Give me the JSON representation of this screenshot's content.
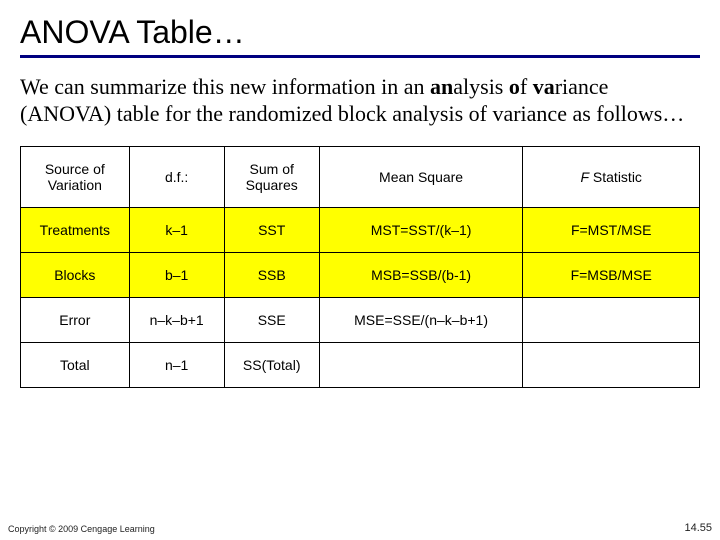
{
  "title": "ANOVA Table…",
  "paragraph": {
    "seg1": "We can summarize this new information in an ",
    "bold1": "an",
    "seg2": "alysis ",
    "bold2": "o",
    "seg3": "f ",
    "bold3": "va",
    "seg4": "riance (ANOVA) table for the randomized block analysis of variance as follows…"
  },
  "table": {
    "columns": {
      "c0": "Source of Variation",
      "c1": "d.f.:",
      "c2": "Sum of Squares",
      "c3": "Mean Square",
      "c4_F": "F",
      "c4_rest": "  Statistic"
    },
    "widths": [
      "16%",
      "14%",
      "14%",
      "30%",
      "26%"
    ],
    "rows": [
      {
        "highlight": true,
        "c0": "Treatments",
        "c1": "k–1",
        "c2": "SST",
        "c3": "MST=SST/(k–1)",
        "c4": "F=MST/MSE"
      },
      {
        "highlight": true,
        "c0": "Blocks",
        "c1": "b–1",
        "c2": "SSB",
        "c3": "MSB=SSB/(b-1)",
        "c4": "F=MSB/MSE"
      },
      {
        "highlight": false,
        "c0": "Error",
        "c1": "n–k–b+1",
        "c2": "SSE",
        "c3": "MSE=SSE/(n–k–b+1)",
        "c4": ""
      },
      {
        "highlight": false,
        "c0": "Total",
        "c1": "n–1",
        "c2": "SS(Total)",
        "c3": "",
        "c4": ""
      }
    ]
  },
  "footer": {
    "copyright": "Copyright © 2009 Cengage Learning",
    "pagenum": "14.55"
  },
  "colors": {
    "title_underline": "#000080",
    "highlight_row_bg": "#ffff00",
    "border": "#000000",
    "background": "#ffffff"
  }
}
